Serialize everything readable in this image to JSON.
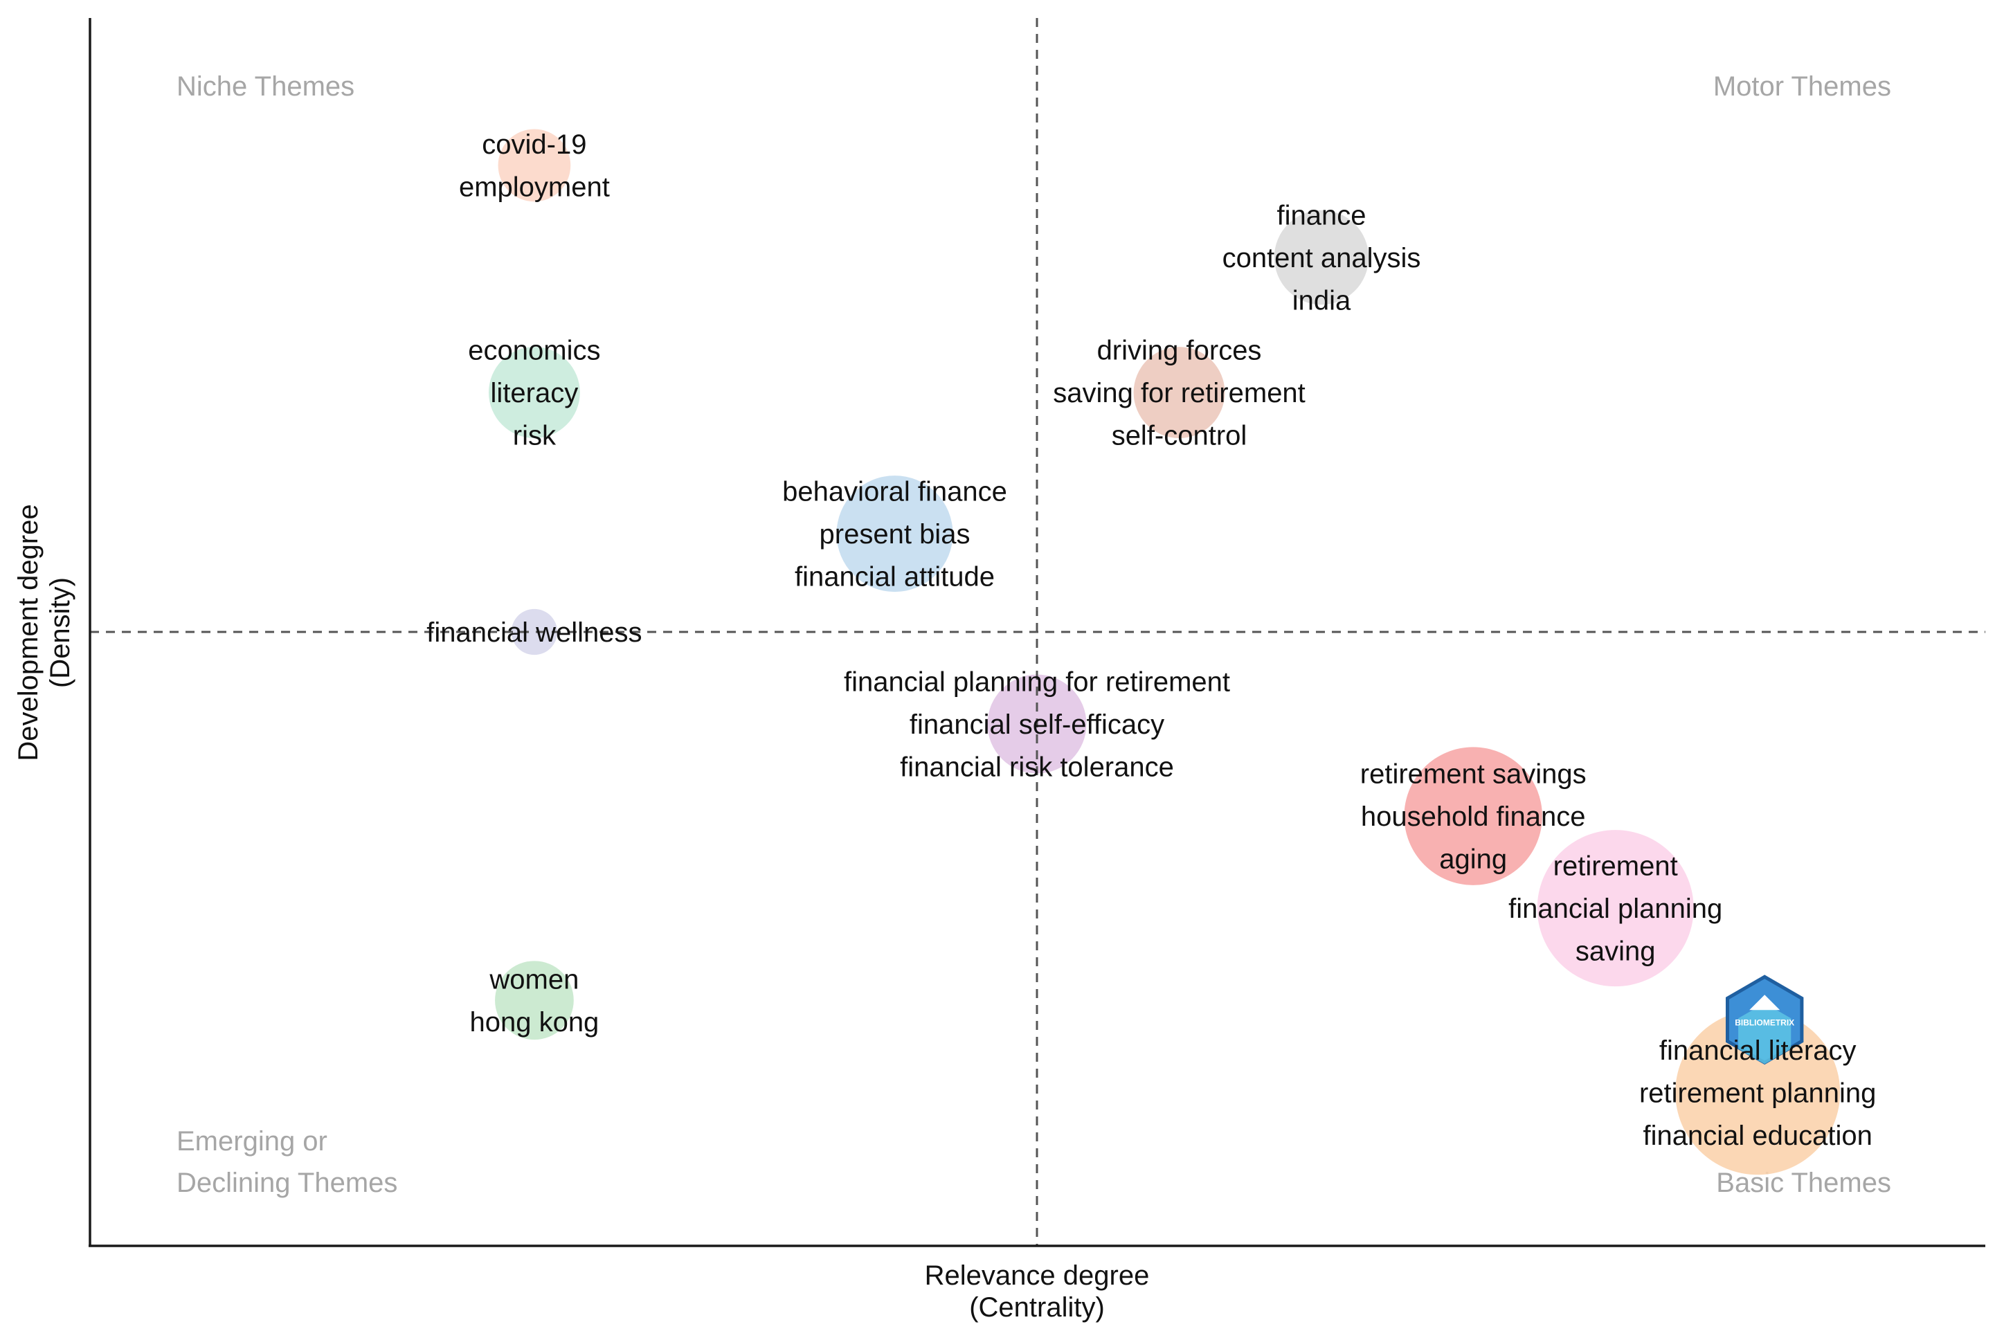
{
  "chart_data": {
    "type": "scatter",
    "subtype": "thematic-map",
    "xlabel": "Relevance degree",
    "xlabel_sub": "(Centrality)",
    "ylabel": "Development degree",
    "ylabel_sub": "(Density)",
    "xlim": [
      0,
      100
    ],
    "ylim": [
      0,
      100
    ],
    "reference_lines": {
      "x": 50,
      "y": 50
    },
    "quadrants": [
      {
        "name": "niche",
        "lines": [
          "Niche Themes"
        ],
        "position": "top-left"
      },
      {
        "name": "motor",
        "lines": [
          "Motor Themes"
        ],
        "position": "top-right"
      },
      {
        "name": "emerging",
        "lines": [
          "Emerging or",
          "Declining Themes"
        ],
        "position": "bottom-left"
      },
      {
        "name": "basic",
        "lines": [
          "Basic Themes"
        ],
        "position": "bottom-right"
      }
    ],
    "clusters": [
      {
        "id": "covid",
        "x": 23.5,
        "y": 88,
        "size": 1.2,
        "color": "#fcd7c8",
        "labels": [
          "covid-19",
          "employment"
        ]
      },
      {
        "id": "finance",
        "x": 65,
        "y": 80.5,
        "size": 2.4,
        "color": "#dcdcdc",
        "labels": [
          "finance",
          "content analysis",
          "india"
        ]
      },
      {
        "id": "economics",
        "x": 23.5,
        "y": 69.5,
        "size": 2.2,
        "color": "#c9ebdc",
        "labels": [
          "economics",
          "literacy",
          "risk"
        ]
      },
      {
        "id": "driving",
        "x": 57.5,
        "y": 69.5,
        "size": 2.2,
        "color": "#ecc9bd",
        "labels": [
          "driving forces",
          "saving for retirement",
          "self-control"
        ]
      },
      {
        "id": "behavioral",
        "x": 42.5,
        "y": 58,
        "size": 4.0,
        "color": "#c4ddf0",
        "labels": [
          "behavioral finance",
          "present bias",
          "financial attitude"
        ]
      },
      {
        "id": "wellness",
        "x": 23.5,
        "y": 50,
        "size": 0.3,
        "color": "#d8d8ec",
        "labels": [
          "financial wellness"
        ]
      },
      {
        "id": "planning-ret",
        "x": 50,
        "y": 42.5,
        "size": 2.7,
        "color": "#e2c6e6",
        "labels": [
          "financial planning for retirement",
          "financial self-efficacy",
          "financial risk tolerance"
        ]
      },
      {
        "id": "savings",
        "x": 73,
        "y": 35,
        "size": 6.0,
        "color": "#f7a8a8",
        "labels": [
          "retirement savings",
          "household finance",
          "aging"
        ]
      },
      {
        "id": "retirement",
        "x": 80.5,
        "y": 27.5,
        "size": 8.0,
        "color": "#fcd4ea",
        "labels": [
          "retirement",
          "financial planning",
          "saving"
        ]
      },
      {
        "id": "women",
        "x": 23.5,
        "y": 20,
        "size": 1.5,
        "color": "#c6e8cc",
        "labels": [
          "women",
          "hong kong"
        ]
      },
      {
        "id": "literacy",
        "x": 88,
        "y": 12.5,
        "size": 9.0,
        "color": "#fbd3ad",
        "labels": [
          "financial literacy",
          "retirement planning",
          "financial education"
        ]
      }
    ],
    "watermark": "BIBLIOMETRIX"
  }
}
